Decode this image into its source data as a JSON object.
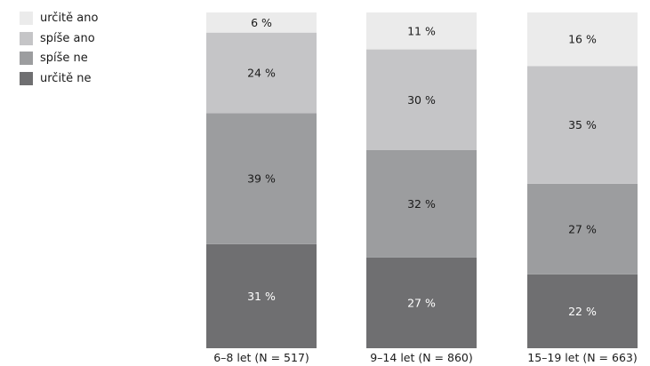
{
  "chart_data": {
    "type": "bar",
    "stacked": true,
    "percent": true,
    "categories": [
      "6–8 let (N = 517)",
      "9–14 let (N = 860)",
      "15–19 let (N = 663)"
    ],
    "series": [
      {
        "name": "určitě ano",
        "color": "#ebebeb",
        "values": [
          6,
          11,
          16
        ],
        "labels": [
          "6 %",
          "11 %",
          "16 %"
        ]
      },
      {
        "name": "spíše ano",
        "color": "#c5c5c7",
        "values": [
          24,
          30,
          35
        ],
        "labels": [
          "24 %",
          "30 %",
          "35 %"
        ]
      },
      {
        "name": "spíše ne",
        "color": "#9c9d9f",
        "values": [
          39,
          32,
          27
        ],
        "labels": [
          "39 %",
          "32 %",
          "27 %"
        ]
      },
      {
        "name": "určitě ne",
        "color": "#6f6f71",
        "values": [
          31,
          27,
          22
        ],
        "labels": [
          "31 %",
          "27 %",
          "22 %"
        ]
      }
    ],
    "label_colors": [
      "#1a1a1a",
      "#1a1a1a",
      "#1a1a1a",
      "#ffffff"
    ],
    "legend_position": "top-left",
    "ylim": [
      0,
      100
    ],
    "grid": false
  }
}
